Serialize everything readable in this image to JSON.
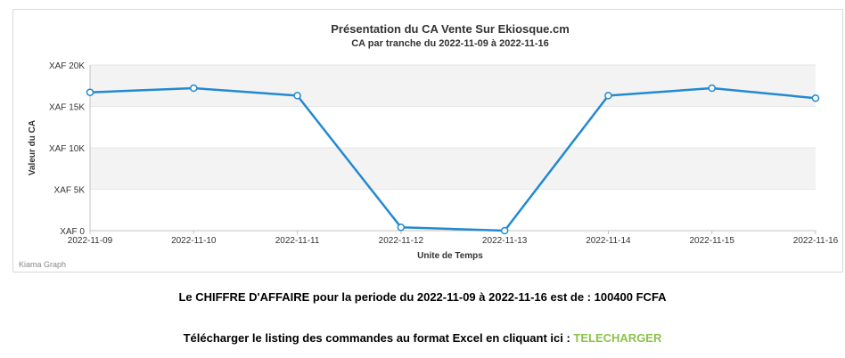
{
  "chart_data": {
    "type": "line",
    "title": "Présentation du CA Vente Sur Ekiosque.cm",
    "subtitle": "CA par tranche du 2022-11-09 à 2022-11-16",
    "xlabel": "Unite de Temps",
    "ylabel": "Valeur du CA",
    "categories": [
      "2022-11-09",
      "2022-11-10",
      "2022-11-11",
      "2022-11-12",
      "2022-11-13",
      "2022-11-14",
      "2022-11-15",
      "2022-11-16"
    ],
    "values": [
      16700,
      17200,
      16300,
      400,
      0,
      16300,
      17200,
      16000
    ],
    "ylim": [
      0,
      20000
    ],
    "yticks": [
      0,
      5000,
      10000,
      15000,
      20000
    ],
    "ytick_labels": [
      "XAF 0",
      "XAF 5K",
      "XAF 10K",
      "XAF 15K",
      "XAF 20K"
    ],
    "grid": true,
    "legend": "none",
    "line_color": "#2389d0",
    "band_color": "#f3f3f3"
  },
  "credit": "Kiama Graph",
  "summary": {
    "text": "Le CHIFFRE D'AFFAIRE pour la periode du 2022-11-09 à 2022-11-16 est de : 100400 FCFA"
  },
  "download": {
    "text": "Télécharger le listing des commandes au format Excel en cliquant ici : ",
    "link_label": "TELECHARGER",
    "link_color": "#8bc34a"
  }
}
